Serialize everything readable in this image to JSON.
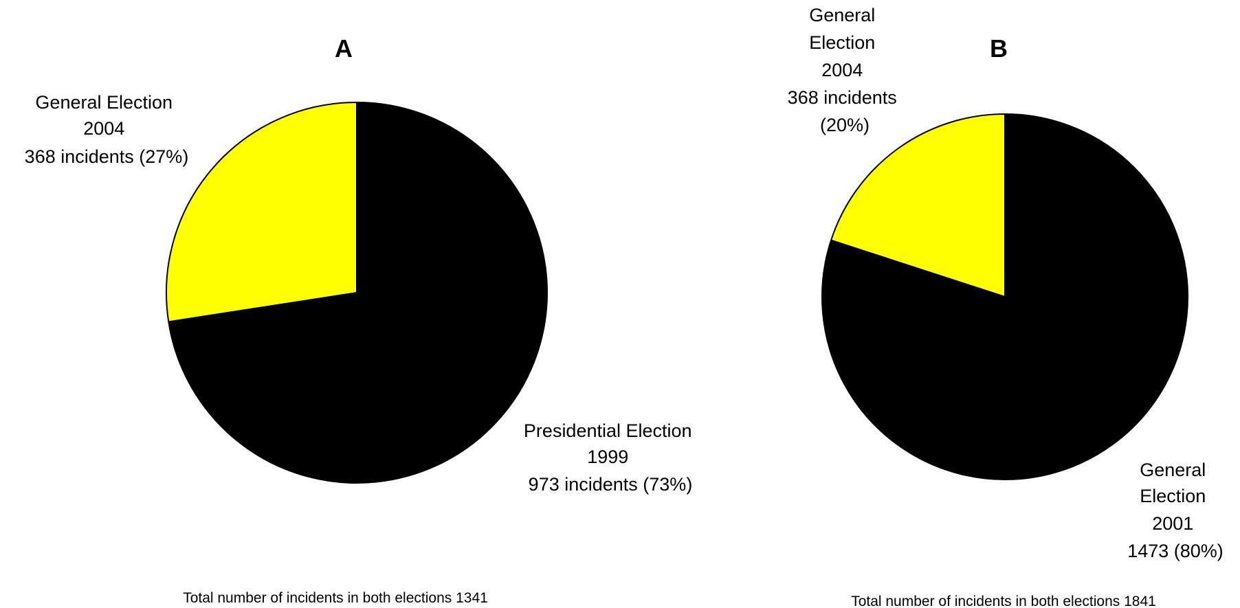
{
  "chart_data": [
    {
      "type": "pie",
      "panel": "A",
      "title": "A",
      "slices": [
        {
          "label": "General Election 2004",
          "label_lines": [
            "General Election",
            "2004",
            "368 incidents (27%)"
          ],
          "value": 368,
          "percent": 27,
          "color": "#ffff00"
        },
        {
          "label": "Presidential Election 1999",
          "label_lines": [
            "Presidential Election",
            "1999",
            "973 incidents (73%)"
          ],
          "value": 973,
          "percent": 73,
          "color": "#000000"
        }
      ],
      "total_text": "Total number of incidents in both elections 1341"
    },
    {
      "type": "pie",
      "panel": "B",
      "title": "B",
      "slices": [
        {
          "label": "General Election 2004",
          "label_lines": [
            "General",
            "Election",
            "2004",
            "368 incidents",
            "(20%)"
          ],
          "value": 368,
          "percent": 20,
          "color": "#ffff00"
        },
        {
          "label": "General Election 2001",
          "label_lines": [
            "General",
            "Election",
            "2001",
            "1473 (80%)"
          ],
          "value": 1473,
          "percent": 80,
          "color": "#000000"
        }
      ],
      "total_text": "Total number of incidents in both elections 1841"
    }
  ]
}
